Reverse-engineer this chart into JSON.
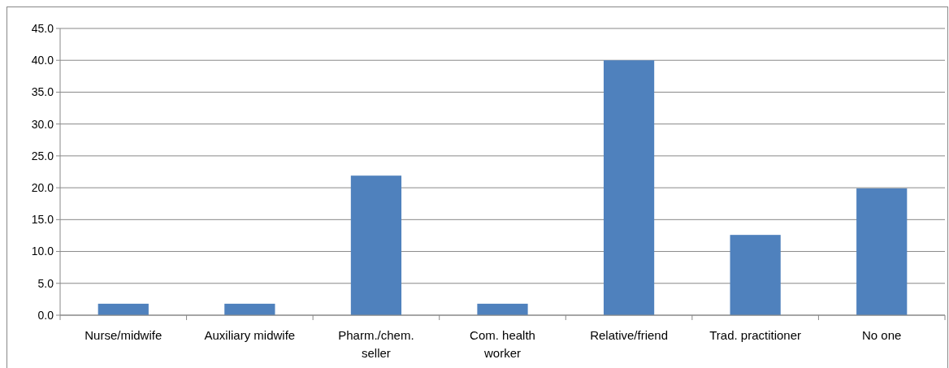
{
  "chart_data": {
    "type": "bar",
    "categories": [
      "Nurse/midwife",
      "Auxiliary midwife",
      "Pharm./chem. seller",
      "Com. health worker",
      "Relative/friend",
      "Trad. practitioner",
      "No one"
    ],
    "values": [
      1.8,
      1.8,
      21.9,
      1.8,
      40.0,
      12.6,
      19.9
    ],
    "color": "#4f81bd",
    "ylim": [
      0,
      45
    ],
    "yticks": [
      {
        "value": 0,
        "label": "0.0"
      },
      {
        "value": 5,
        "label": "5.0"
      },
      {
        "value": 10,
        "label": "10.0"
      },
      {
        "value": 15,
        "label": "15.0"
      },
      {
        "value": 20,
        "label": "20.0"
      },
      {
        "value": 25,
        "label": "25.0"
      },
      {
        "value": 30,
        "label": "30.0"
      },
      {
        "value": 35,
        "label": "35.0"
      },
      {
        "value": 40,
        "label": "40.0"
      },
      {
        "value": 45,
        "label": "45.0"
      }
    ],
    "grid": "y"
  }
}
